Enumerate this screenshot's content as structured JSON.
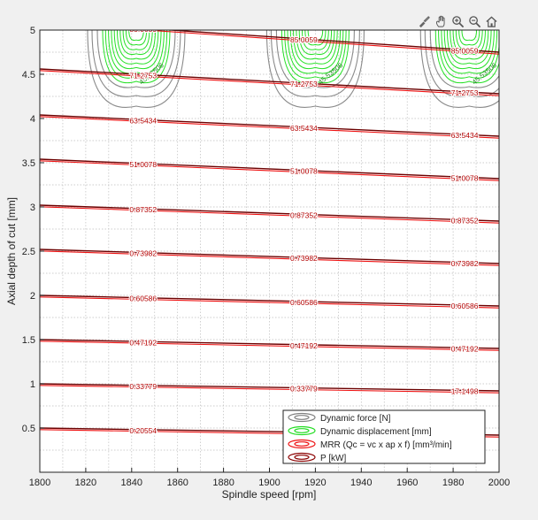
{
  "toolbar": {
    "icons": [
      "brush-data-icon",
      "pan-hand-icon",
      "zoom-in-icon",
      "zoom-out-icon",
      "home-restore-icon"
    ]
  },
  "chart_data": {
    "type": "line",
    "title": "",
    "xlabel": "Spindle speed [rpm]",
    "ylabel": "Axial depth of cut [mm]",
    "xlim": [
      1800,
      2000
    ],
    "ylim": [
      0,
      5
    ],
    "x_ticks": [
      1800,
      1820,
      1840,
      1860,
      1880,
      1900,
      1920,
      1940,
      1960,
      1980,
      2000
    ],
    "y_ticks": [
      0.5,
      1,
      1.5,
      2,
      2.5,
      3,
      3.5,
      4,
      4.5,
      5
    ],
    "x_tick_labels": [
      "1800",
      "1820",
      "1840",
      "1860",
      "1880",
      "1900",
      "1920",
      "1940",
      "1960",
      "1980",
      "2000"
    ],
    "y_tick_labels": [
      "0.5",
      "1",
      "1.5",
      "2",
      "2.5",
      "3",
      "3.5",
      "4",
      "4.5",
      "5"
    ],
    "grid": true,
    "legend_position": "bottom-right",
    "legend": [
      {
        "name": "Dynamic force [N]",
        "color": "#808080"
      },
      {
        "name": "Dynamic displacement [mm]",
        "color": "#22dd22"
      },
      {
        "name": "MRR (Qc = vc x ap x f) [mm³/min]",
        "color": "#ee1111"
      },
      {
        "name": "P [kW]",
        "color": "#8b0000"
      }
    ],
    "mrr_contours": [
      {
        "y_start": 0.5,
        "y_end": 0.42,
        "labels": [
          "0.20554",
          "0.20554"
        ]
      },
      {
        "y_start": 1.0,
        "y_end": 0.92,
        "labels": [
          "0.33779",
          "0.33779",
          "17.1498"
        ]
      },
      {
        "y_start": 1.5,
        "y_end": 1.4,
        "labels": [
          "0.47192",
          "0.47192",
          "0.47192"
        ]
      },
      {
        "y_start": 2.0,
        "y_end": 1.88,
        "labels": [
          "0.60586",
          "0.60586",
          "0.60586"
        ]
      },
      {
        "y_start": 2.52,
        "y_end": 2.36,
        "labels": [
          "0.73982",
          "0.73982",
          "0.73982"
        ]
      },
      {
        "y_start": 3.02,
        "y_end": 2.84,
        "labels": [
          "0.87352",
          "0.87352",
          "0.87352"
        ]
      },
      {
        "y_start": 3.54,
        "y_end": 3.32,
        "labels": [
          "51.0078",
          "51.0078",
          "51.0078"
        ]
      },
      {
        "y_start": 4.04,
        "y_end": 3.8,
        "labels": [
          "63.5434",
          "63.5434",
          "63.5434"
        ]
      },
      {
        "y_start": 4.56,
        "y_end": 4.28,
        "labels": [
          "71.2753",
          "71.2753",
          "71.2753"
        ]
      },
      {
        "y_start": 5.1,
        "y_end": 4.75,
        "labels": [
          "85.0059",
          "85.0059",
          "85.0059"
        ]
      }
    ],
    "force_regions": [
      1842,
      1920,
      1987
    ],
    "force_label": "45.53506"
  }
}
